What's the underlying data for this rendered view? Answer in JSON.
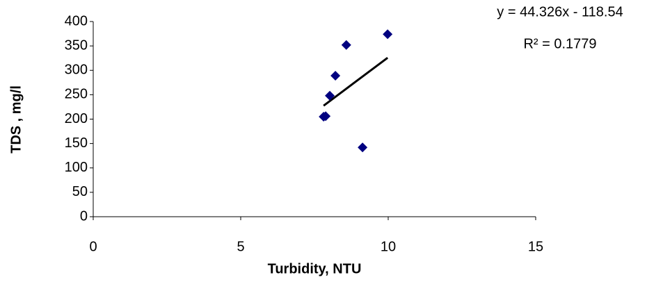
{
  "chart_data": {
    "type": "scatter",
    "x_label": "Turbidity, NTU",
    "y_label": "TDS , mg/l",
    "series": [
      {
        "color": "#000080",
        "x": [
          7.81,
          7.88,
          8.02,
          8.21,
          8.58,
          9.13,
          9.98
        ],
        "values": [
          205,
          206,
          248,
          289,
          352,
          142,
          374
        ]
      }
    ],
    "xlim": [
      0,
      15
    ],
    "xticks": [
      0,
      5,
      10,
      15
    ],
    "ylim": [
      0,
      400
    ],
    "yticks": [
      0,
      50,
      100,
      150,
      200,
      250,
      300,
      350,
      400
    ],
    "grid": false,
    "trendline": {
      "color": "#000000",
      "equation": "y = 44.326x - 118.54",
      "r_squared": "R² = 0.1779"
    }
  }
}
